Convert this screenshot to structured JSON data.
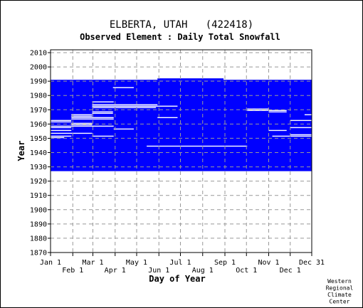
{
  "chart_data": {
    "type": "heatmap",
    "title": "ELBERTA, UTAH   (422418)",
    "subtitle": "Observed Element : Daily Total Snowfall",
    "xlabel": "Day of Year",
    "ylabel": "Year",
    "xlim": [
      1,
      365
    ],
    "ylim": [
      1870,
      2012
    ],
    "y_ticks": [
      1870,
      1880,
      1890,
      1900,
      1910,
      1920,
      1930,
      1940,
      1950,
      1960,
      1970,
      1980,
      1990,
      2000,
      2010
    ],
    "x_ticks_top_row": [
      {
        "label": "Jan 1",
        "day": 1
      },
      {
        "label": "Mar 1",
        "day": 60
      },
      {
        "label": "May 1",
        "day": 121
      },
      {
        "label": "Jul 1",
        "day": 182
      },
      {
        "label": "Sep 1",
        "day": 244
      },
      {
        "label": "Nov 1",
        "day": 305
      },
      {
        "label": "Dec 31",
        "day": 365
      }
    ],
    "x_ticks_bottom_row": [
      {
        "label": "Feb 1",
        "day": 32
      },
      {
        "label": "Apr 1",
        "day": 91
      },
      {
        "label": "Jun 1",
        "day": 152
      },
      {
        "label": "Aug 1",
        "day": 213
      },
      {
        "label": "Oct 1",
        "day": 274
      },
      {
        "label": "Dec 1",
        "day": 335
      }
    ],
    "grid": true,
    "colors": {
      "observed": "#0000ff",
      "missing": "#ffffff",
      "grid": "#999999"
    },
    "observed_block": {
      "year_start": 1927,
      "year_end": 1990,
      "day_start": 1,
      "day_end": 365
    },
    "observed_step": [
      {
        "day_start": 150,
        "day_end": 242,
        "year_end": 1991
      }
    ],
    "missing_segments": [
      {
        "year": 1985,
        "day_start": 88,
        "day_end": 117
      },
      {
        "year": 1975,
        "day_start": 59,
        "day_end": 89
      },
      {
        "year": 1973,
        "day_start": 59,
        "day_end": 150
      },
      {
        "year": 1972,
        "day_start": 59,
        "day_end": 178
      },
      {
        "year": 1971,
        "day_start": 59,
        "day_end": 148
      },
      {
        "year": 1970,
        "day_start": 275,
        "day_end": 305
      },
      {
        "year": 1969,
        "day_start": 275,
        "day_end": 330
      },
      {
        "year": 1968,
        "day_start": 59,
        "day_end": 88
      },
      {
        "year": 1968,
        "day_start": 305,
        "day_end": 330
      },
      {
        "year": 1967,
        "day_start": 59,
        "day_end": 88
      },
      {
        "year": 1966,
        "day_start": 30,
        "day_end": 59
      },
      {
        "year": 1966,
        "day_start": 355,
        "day_end": 365
      },
      {
        "year": 1965,
        "day_start": 30,
        "day_end": 59
      },
      {
        "year": 1964,
        "day_start": 30,
        "day_end": 89
      },
      {
        "year": 1964,
        "day_start": 150,
        "day_end": 178
      },
      {
        "year": 1963,
        "day_start": 30,
        "day_end": 89
      },
      {
        "year": 1962,
        "day_start": 1,
        "day_end": 30
      },
      {
        "year": 1962,
        "day_start": 335,
        "day_end": 365
      },
      {
        "year": 1961,
        "day_start": 1,
        "day_end": 30
      },
      {
        "year": 1960,
        "day_start": 30,
        "day_end": 59
      },
      {
        "year": 1959,
        "day_start": 30,
        "day_end": 59
      },
      {
        "year": 1958,
        "day_start": 1,
        "day_end": 89
      },
      {
        "year": 1957,
        "day_start": 1,
        "day_end": 30
      },
      {
        "year": 1957,
        "day_start": 335,
        "day_end": 365
      },
      {
        "year": 1956,
        "day_start": 89,
        "day_end": 117
      },
      {
        "year": 1955,
        "day_start": 1,
        "day_end": 30
      },
      {
        "year": 1955,
        "day_start": 305,
        "day_end": 330
      },
      {
        "year": 1953,
        "day_start": 1,
        "day_end": 59
      },
      {
        "year": 1952,
        "day_start": 335,
        "day_end": 365
      },
      {
        "year": 1951,
        "day_start": 1,
        "day_end": 30
      },
      {
        "year": 1951,
        "day_start": 59,
        "day_end": 89
      },
      {
        "year": 1951,
        "day_start": 310,
        "day_end": 365
      },
      {
        "year": 1950,
        "day_start": 1,
        "day_end": 20
      },
      {
        "year": 1944,
        "day_start": 135,
        "day_end": 275
      }
    ],
    "credit": [
      "Western",
      "Regional",
      "Climate",
      "Center"
    ]
  }
}
